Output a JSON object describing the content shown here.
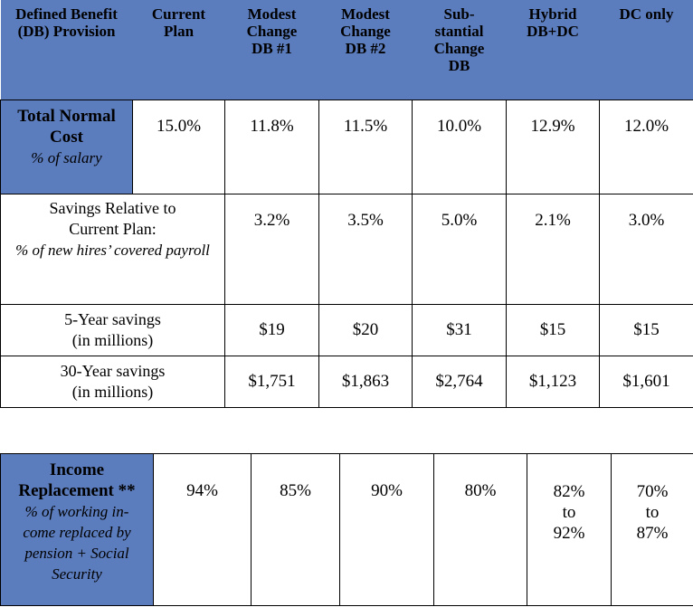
{
  "header": {
    "provision": "Defined Benefit (DB) Provision",
    "columns": [
      "Current Plan",
      "Modest Change DB #1",
      "Modest Change DB #2",
      "Sub-stantial Change DB",
      "Hybrid DB+DC",
      "DC only"
    ]
  },
  "rows": {
    "normal_cost": {
      "label": "Total Normal Cost",
      "sublabel": "% of salary",
      "values": [
        "15.0%",
        "11.8%",
        "11.5%",
        "10.0%",
        "12.9%",
        "12.0%"
      ]
    },
    "savings_relative": {
      "label": "Savings Relative to Current Plan:",
      "sublabel": "% of new hires’ covered payroll",
      "values": [
        "",
        "3.2%",
        "3.5%",
        "5.0%",
        "2.1%",
        "3.0%"
      ]
    },
    "five_year": {
      "label": "5-Year savings",
      "sublabel": "(in millions)",
      "values": [
        "",
        "$19",
        "$20",
        "$31",
        "$15",
        "$15"
      ]
    },
    "thirty_year": {
      "label": "30-Year savings",
      "sublabel": "(in millions)",
      "values": [
        "",
        "$1,751",
        "$1,863",
        "$2,764",
        "$1,123",
        "$1,601"
      ]
    }
  },
  "income": {
    "label": "Income Replacement **",
    "sublabel": "% of working in-come replaced by pension + Social Security",
    "values": [
      "94%",
      "85%",
      "90%",
      "80%",
      "82% to 92%",
      "70% to 87%"
    ]
  },
  "colors": {
    "header_blue": "#5b7cbd",
    "border": "#000000"
  }
}
